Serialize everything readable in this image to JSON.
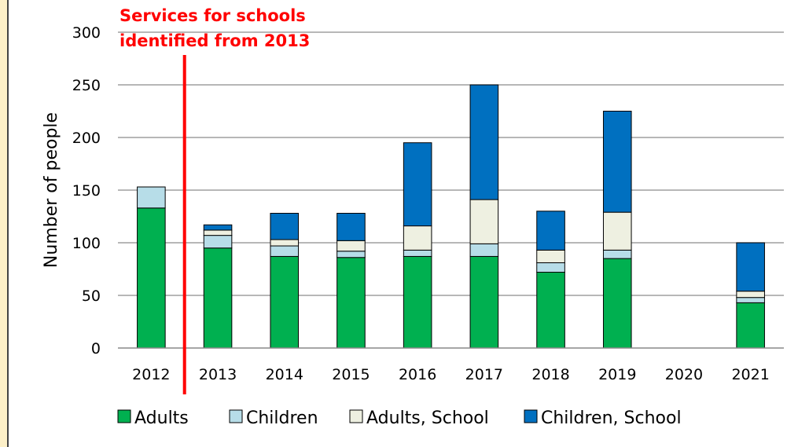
{
  "chart_data": {
    "type": "bar",
    "stacked": true,
    "categories": [
      "2012",
      "2013",
      "2014",
      "2015",
      "2016",
      "2017",
      "2018",
      "2019",
      "2020",
      "2021"
    ],
    "series": [
      {
        "name": "Adults",
        "color": "#00b050",
        "values": [
          133,
          95,
          87,
          86,
          87,
          87,
          72,
          85,
          0,
          43
        ]
      },
      {
        "name": "Children",
        "color": "#b7dde8",
        "values": [
          20,
          12,
          10,
          6,
          6,
          12,
          9,
          8,
          0,
          5
        ]
      },
      {
        "name": "Adults, School",
        "color": "#eef0e1",
        "values": [
          0,
          5,
          6,
          10,
          23,
          42,
          12,
          36,
          0,
          6
        ]
      },
      {
        "name": "Children, School",
        "color": "#0070c0",
        "values": [
          0,
          5,
          25,
          26,
          79,
          109,
          37,
          96,
          0,
          46
        ]
      }
    ],
    "ylabel": "Number of people",
    "ylim": [
      0,
      300
    ],
    "yticks": [
      0,
      50,
      100,
      150,
      200,
      250,
      300
    ],
    "grid": true,
    "legend": "bottom",
    "annotation": {
      "text_line1": "Services for schools",
      "text_line2": "identified from 2013",
      "between": [
        "2012",
        "2013"
      ],
      "color": "#ff0000"
    }
  }
}
